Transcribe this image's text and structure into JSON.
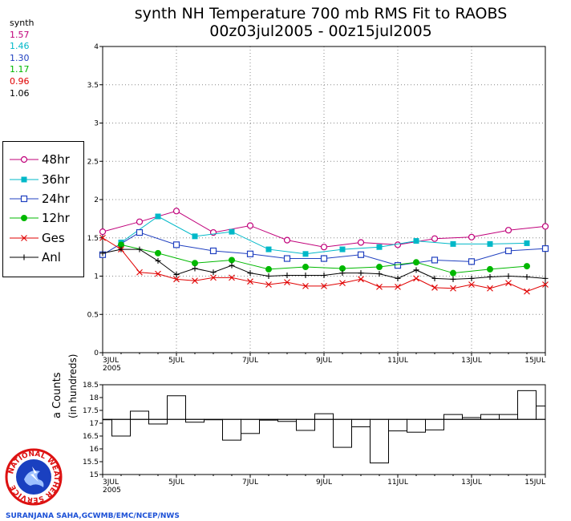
{
  "header": {
    "title_line1": "synth NH Temperature 700 mb RMS Fit to RAOBS",
    "title_line2": "00z03jul2005 - 00z15jul2005"
  },
  "stats": {
    "label": "synth",
    "items": [
      {
        "value": "1.57",
        "color": "#c0007a"
      },
      {
        "value": "1.46",
        "color": "#00b8c8"
      },
      {
        "value": "1.30",
        "color": "#2040c0"
      },
      {
        "value": "1.17",
        "color": "#00b800"
      },
      {
        "value": "0.96",
        "color": "#e00000"
      },
      {
        "value": "1.06",
        "color": "#000000"
      }
    ]
  },
  "legend": [
    {
      "label": "48hr",
      "color": "#c0007a",
      "marker": "circle-open"
    },
    {
      "label": "36hr",
      "color": "#00b8c8",
      "marker": "square-filled"
    },
    {
      "label": "24hr",
      "color": "#2040c0",
      "marker": "square-open"
    },
    {
      "label": "12hr",
      "color": "#00b800",
      "marker": "circle-filled"
    },
    {
      "label": "Ges",
      "color": "#e00000",
      "marker": "x"
    },
    {
      "label": "Anl",
      "color": "#000000",
      "marker": "plus"
    }
  ],
  "credit": "SURANJANA SAHA,GCWMB/EMC/NCEP/NWS",
  "logo": {
    "text": "NATIONAL WEATHER SERVICE"
  },
  "counts_ylabel_line1": "a Counts",
  "counts_ylabel_line2": "(in hundreds)",
  "chart_data": [
    {
      "type": "line",
      "title": "synth NH Temperature 700 mb RMS Fit to RAOBS",
      "ylim": [
        0,
        4
      ],
      "xlim": [
        3,
        15
      ],
      "yticks": [
        "0",
        "0.5",
        "1",
        "1.5",
        "2",
        "2.5",
        "3",
        "3.5",
        "4"
      ],
      "xticks": [
        {
          "x": 3,
          "label": "3JUL",
          "sub": "2005"
        },
        {
          "x": 5,
          "label": "5JUL",
          "sub": ""
        },
        {
          "x": 7,
          "label": "7JUL",
          "sub": ""
        },
        {
          "x": 9,
          "label": "9JUL",
          "sub": ""
        },
        {
          "x": 11,
          "label": "11JUL",
          "sub": ""
        },
        {
          "x": 13,
          "label": "13JUL",
          "sub": ""
        },
        {
          "x": 15,
          "label": "15JUL",
          "sub": ""
        }
      ],
      "grid": true,
      "series": [
        {
          "name": "48hr",
          "color": "#c0007a",
          "marker": "circle-open",
          "x": [
            3,
            4,
            5,
            6,
            7,
            8,
            9,
            10,
            11,
            12,
            13,
            14,
            15
          ],
          "y": [
            1.58,
            1.71,
            1.85,
            1.57,
            1.66,
            1.47,
            1.38,
            1.44,
            1.41,
            1.49,
            1.51,
            1.6,
            1.65
          ]
        },
        {
          "name": "36hr",
          "color": "#00b8c8",
          "marker": "square-filled",
          "x": [
            3.5,
            4.5,
            5.5,
            6.5,
            7.5,
            8.5,
            9.5,
            10.5,
            11.5,
            12.5,
            13.5,
            14.5
          ],
          "y": [
            1.44,
            1.78,
            1.52,
            1.58,
            1.35,
            1.29,
            1.35,
            1.38,
            1.46,
            1.42,
            1.42,
            1.43
          ]
        },
        {
          "name": "24hr",
          "color": "#2040c0",
          "marker": "square-open",
          "x": [
            3,
            4,
            5,
            6,
            7,
            8,
            9,
            10,
            11,
            12,
            13,
            14,
            15
          ],
          "y": [
            1.28,
            1.57,
            1.41,
            1.33,
            1.29,
            1.23,
            1.23,
            1.28,
            1.14,
            1.21,
            1.19,
            1.33,
            1.36
          ]
        },
        {
          "name": "12hr",
          "color": "#00b800",
          "marker": "circle-filled",
          "x": [
            3.5,
            4.5,
            5.5,
            6.5,
            7.5,
            8.5,
            9.5,
            10.5,
            11.5,
            12.5,
            13.5,
            14.5
          ],
          "y": [
            1.41,
            1.3,
            1.17,
            1.21,
            1.09,
            1.12,
            1.1,
            1.12,
            1.18,
            1.04,
            1.09,
            1.13
          ]
        },
        {
          "name": "Ges",
          "color": "#e00000",
          "marker": "x",
          "x": [
            3,
            3.5,
            4,
            4.5,
            5,
            5.5,
            6,
            6.5,
            7,
            7.5,
            8,
            8.5,
            9,
            9.5,
            10,
            10.5,
            11,
            11.5,
            12,
            12.5,
            13,
            13.5,
            14,
            14.5,
            15
          ],
          "y": [
            1.5,
            1.35,
            1.05,
            1.03,
            0.96,
            0.94,
            0.98,
            0.98,
            0.93,
            0.89,
            0.92,
            0.87,
            0.87,
            0.91,
            0.96,
            0.86,
            0.86,
            0.97,
            0.85,
            0.84,
            0.89,
            0.84,
            0.91,
            0.8,
            0.89
          ]
        },
        {
          "name": "Anl",
          "color": "#000000",
          "marker": "plus",
          "x": [
            3,
            3.5,
            4,
            4.5,
            5,
            5.5,
            6,
            6.5,
            7,
            7.5,
            8,
            8.5,
            9,
            9.5,
            10,
            10.5,
            11,
            11.5,
            12,
            12.5,
            13,
            13.5,
            14,
            14.5,
            15
          ],
          "y": [
            1.3,
            1.35,
            1.35,
            1.2,
            1.02,
            1.1,
            1.05,
            1.14,
            1.04,
            1.0,
            1.01,
            1.01,
            1.01,
            1.04,
            1.04,
            1.03,
            0.97,
            1.08,
            0.97,
            0.96,
            0.97,
            0.99,
            1.0,
            0.99,
            0.97
          ]
        }
      ]
    },
    {
      "type": "bar",
      "subtype": "step",
      "ylim": [
        15,
        18.5
      ],
      "xlim": [
        3,
        15
      ],
      "yticks": [
        "15",
        "15.5",
        "16",
        "16.5",
        "17",
        "17.5",
        "18",
        "18.5"
      ],
      "xticks": [
        {
          "x": 3,
          "label": "3JUL",
          "sub": "2005"
        },
        {
          "x": 5,
          "label": "5JUL",
          "sub": ""
        },
        {
          "x": 7,
          "label": "7JUL",
          "sub": ""
        },
        {
          "x": 9,
          "label": "9JUL",
          "sub": ""
        },
        {
          "x": 11,
          "label": "11JUL",
          "sub": ""
        },
        {
          "x": 13,
          "label": "13JUL",
          "sub": ""
        },
        {
          "x": 15,
          "label": "15JUL",
          "sub": ""
        }
      ],
      "baseline": 17.15,
      "x": [
        3,
        3.5,
        4,
        4.5,
        5,
        5.5,
        6,
        6.5,
        7,
        7.5,
        8,
        8.5,
        9,
        9.5,
        10,
        10.5,
        11,
        11.5,
        12,
        12.5,
        13,
        13.5,
        14,
        14.5,
        15
      ],
      "values": [
        17.15,
        16.5,
        17.47,
        16.97,
        18.07,
        17.04,
        17.15,
        16.34,
        16.6,
        17.12,
        17.07,
        16.72,
        17.37,
        16.06,
        16.86,
        15.45,
        16.7,
        16.65,
        16.74,
        17.34,
        17.22,
        17.34,
        17.34,
        18.27,
        17.67
      ]
    }
  ]
}
